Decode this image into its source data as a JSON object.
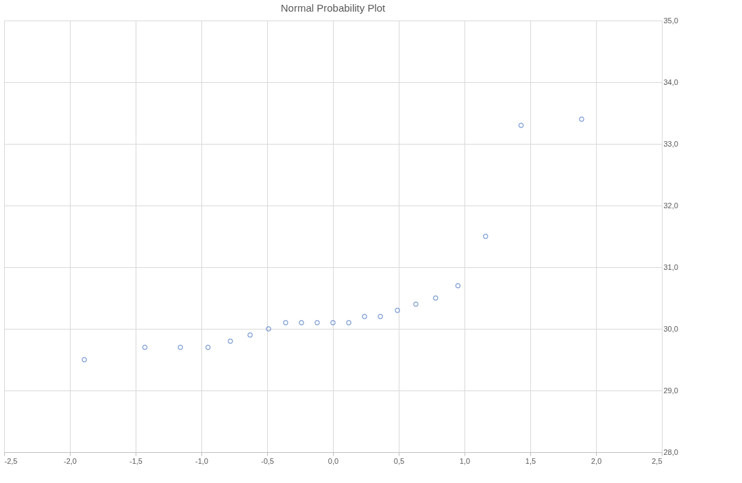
{
  "chart_data": {
    "type": "scatter",
    "title": "Normal Probability Plot",
    "x": [
      -1.89,
      -1.43,
      -1.16,
      -0.95,
      -0.78,
      -0.63,
      -0.49,
      -0.36,
      -0.24,
      -0.12,
      0,
      0.12,
      0.24,
      0.36,
      0.49,
      0.63,
      0.78,
      0.95,
      1.16,
      1.43,
      1.89
    ],
    "series": [
      {
        "color": "#4472c4",
        "values": [
          29.5,
          29.7,
          29.7,
          29.7,
          29.8,
          29.9,
          30.0,
          30.1,
          30.1,
          30.1,
          30.1,
          30.1,
          30.2,
          30.2,
          30.3,
          30.4,
          30.5,
          30.7,
          31.5,
          33.3,
          33.4
        ]
      }
    ],
    "xlim": [
      -2.5,
      2.5
    ],
    "xticks": [
      {
        "value": -2.5,
        "label": "-2,5"
      },
      {
        "value": -2.0,
        "label": "-2,0"
      },
      {
        "value": -1.5,
        "label": "-1,5"
      },
      {
        "value": -1.0,
        "label": "-1,0"
      },
      {
        "value": -0.5,
        "label": "-0,5"
      },
      {
        "value": 0,
        "label": "0,0"
      },
      {
        "value": 0.5,
        "label": "0,5"
      },
      {
        "value": 1.0,
        "label": "1,0"
      },
      {
        "value": 1.5,
        "label": "1,5"
      },
      {
        "value": 2.0,
        "label": "2,0"
      },
      {
        "value": 2.5,
        "label": "2,5"
      }
    ],
    "ylim": [
      28,
      35
    ],
    "yticks": [
      {
        "value": 28,
        "label": "28,0"
      },
      {
        "value": 29,
        "label": "29,0"
      },
      {
        "value": 30,
        "label": "30,0"
      },
      {
        "value": 31,
        "label": "31,0"
      },
      {
        "value": 32,
        "label": "32,0"
      },
      {
        "value": 33,
        "label": "33,0"
      },
      {
        "value": 34,
        "label": "34,0"
      },
      {
        "value": 35,
        "label": "35,0"
      }
    ],
    "grid": true,
    "marker": "circle",
    "legend": false
  }
}
